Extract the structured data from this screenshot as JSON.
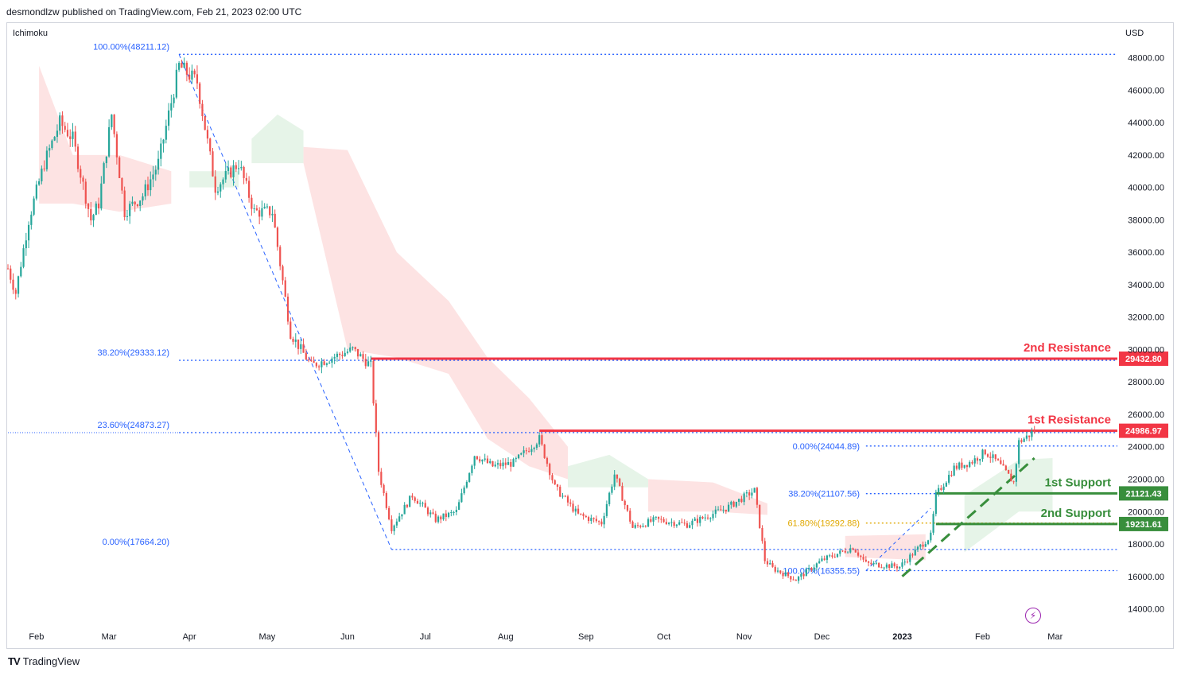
{
  "header": {
    "text": "desmondlzw published on TradingView.com, Feb 21, 2023 02:00 UTC"
  },
  "indicator": {
    "label": "Ichimoku"
  },
  "footer": {
    "brand": "TradingView",
    "logo_icon": "tradingview-logo-icon"
  },
  "colors": {
    "up": "#26a69a",
    "down": "#ef5350",
    "fib_blue": "#2962ff",
    "fib_orange": "#e0a800",
    "resistance": "#f23645",
    "support": "#388e3c",
    "cloud_red": "#fde0e0",
    "cloud_green": "#e3f3e6",
    "grid": "#f0f3fa"
  },
  "chart_data": {
    "type": "candlestick",
    "currency_label": "USD",
    "ylim": [
      12800,
      49600
    ],
    "y_ticks": [
      "48000.00",
      "46000.00",
      "44000.00",
      "42000.00",
      "40000.00",
      "38000.00",
      "36000.00",
      "34000.00",
      "32000.00",
      "30000.00",
      "28000.00",
      "26000.00",
      "24000.00",
      "22000.00",
      "20000.00",
      "18000.00",
      "16000.00",
      "14000.00"
    ],
    "x_ticks": [
      "Feb",
      "Mar",
      "Apr",
      "May",
      "Jun",
      "Jul",
      "Aug",
      "Sep",
      "Oct",
      "Nov",
      "Dec",
      "2023",
      "Feb",
      "Mar"
    ],
    "price_path": [
      {
        "x": "2022-01-21",
        "y": 35000
      },
      {
        "x": "2022-01-24",
        "y": 33500
      },
      {
        "x": "2022-01-29",
        "y": 38000
      },
      {
        "x": "2022-02-04",
        "y": 41500
      },
      {
        "x": "2022-02-10",
        "y": 44000
      },
      {
        "x": "2022-02-15",
        "y": 43000
      },
      {
        "x": "2022-02-22",
        "y": 38000
      },
      {
        "x": "2022-02-25",
        "y": 39000
      },
      {
        "x": "2022-03-02",
        "y": 44500
      },
      {
        "x": "2022-03-07",
        "y": 38500
      },
      {
        "x": "2022-03-14",
        "y": 39500
      },
      {
        "x": "2022-03-20",
        "y": 41500
      },
      {
        "x": "2022-03-28",
        "y": 47500
      },
      {
        "x": "2022-04-04",
        "y": 46500
      },
      {
        "x": "2022-04-11",
        "y": 40000
      },
      {
        "x": "2022-04-20",
        "y": 41500
      },
      {
        "x": "2022-04-26",
        "y": 38500
      },
      {
        "x": "2022-05-03",
        "y": 38500
      },
      {
        "x": "2022-05-10",
        "y": 31000
      },
      {
        "x": "2022-05-18",
        "y": 29000
      },
      {
        "x": "2022-05-26",
        "y": 29500
      },
      {
        "x": "2022-06-03",
        "y": 30000
      },
      {
        "x": "2022-06-10",
        "y": 29000
      },
      {
        "x": "2022-06-13",
        "y": 22500
      },
      {
        "x": "2022-06-18",
        "y": 19000
      },
      {
        "x": "2022-06-26",
        "y": 21000
      },
      {
        "x": "2022-07-05",
        "y": 19500
      },
      {
        "x": "2022-07-13",
        "y": 20000
      },
      {
        "x": "2022-07-20",
        "y": 23500
      },
      {
        "x": "2022-07-27",
        "y": 22800
      },
      {
        "x": "2022-08-04",
        "y": 23000
      },
      {
        "x": "2022-08-14",
        "y": 24500
      },
      {
        "x": "2022-08-20",
        "y": 21500
      },
      {
        "x": "2022-08-29",
        "y": 19800
      },
      {
        "x": "2022-09-07",
        "y": 19300
      },
      {
        "x": "2022-09-12",
        "y": 22300
      },
      {
        "x": "2022-09-19",
        "y": 19000
      },
      {
        "x": "2022-09-28",
        "y": 19500
      },
      {
        "x": "2022-10-10",
        "y": 19200
      },
      {
        "x": "2022-10-25",
        "y": 20200
      },
      {
        "x": "2022-11-05",
        "y": 21300
      },
      {
        "x": "2022-11-09",
        "y": 17000
      },
      {
        "x": "2022-11-12",
        "y": 16500
      },
      {
        "x": "2022-11-21",
        "y": 15800
      },
      {
        "x": "2022-12-01",
        "y": 17000
      },
      {
        "x": "2022-12-13",
        "y": 17800
      },
      {
        "x": "2022-12-18",
        "y": 16800
      },
      {
        "x": "2022-12-31",
        "y": 16600
      },
      {
        "x": "2023-01-12",
        "y": 18500
      },
      {
        "x": "2023-01-14",
        "y": 21000
      },
      {
        "x": "2023-01-21",
        "y": 22700
      },
      {
        "x": "2023-01-28",
        "y": 23100
      },
      {
        "x": "2023-02-02",
        "y": 23700
      },
      {
        "x": "2023-02-07",
        "y": 23000
      },
      {
        "x": "2023-02-13",
        "y": 21800
      },
      {
        "x": "2023-02-15",
        "y": 24300
      },
      {
        "x": "2023-02-18",
        "y": 24600
      },
      {
        "x": "2023-02-21",
        "y": 25000
      }
    ],
    "fib_retracement_1": [
      {
        "label": "100.00%(48211.12)",
        "value": 48211.12,
        "color": "#2962ff"
      },
      {
        "label": "38.20%(29333.12)",
        "value": 29333.12,
        "color": "#2962ff"
      },
      {
        "label": "23.60%(24873.27)",
        "value": 24873.27,
        "color": "#2962ff"
      },
      {
        "label": "0.00%(17664.20)",
        "value": 17664.2,
        "color": "#2962ff"
      }
    ],
    "fib_retracement_2": [
      {
        "label": "0.00%(24044.89)",
        "value": 24044.89,
        "color": "#2962ff"
      },
      {
        "label": "38.20%(21107.56)",
        "value": 21107.56,
        "color": "#2962ff"
      },
      {
        "label": "61.80%(19292.88)",
        "value": 19292.88,
        "color": "#e0a800"
      },
      {
        "label": "100.00%(16355.55)",
        "value": 16355.55,
        "color": "#2962ff"
      }
    ],
    "levels": [
      {
        "name": "2nd Resistance",
        "price_tag": "29432.80",
        "value": 29432.8,
        "kind": "resistance"
      },
      {
        "name": "1st Resistance",
        "price_tag": "24986.97",
        "value": 24986.97,
        "kind": "resistance"
      },
      {
        "name": "1st Support",
        "price_tag": "21121.43",
        "value": 21121.43,
        "kind": "support"
      },
      {
        "name": "2nd Support",
        "price_tag": "19231.61",
        "value": 19231.61,
        "kind": "support"
      }
    ],
    "trendline": {
      "style": "dashed",
      "from": {
        "x": "2023-01-01",
        "y": 16000
      },
      "to": {
        "x": "2023-02-21",
        "y": 23300
      }
    },
    "grid": false
  }
}
